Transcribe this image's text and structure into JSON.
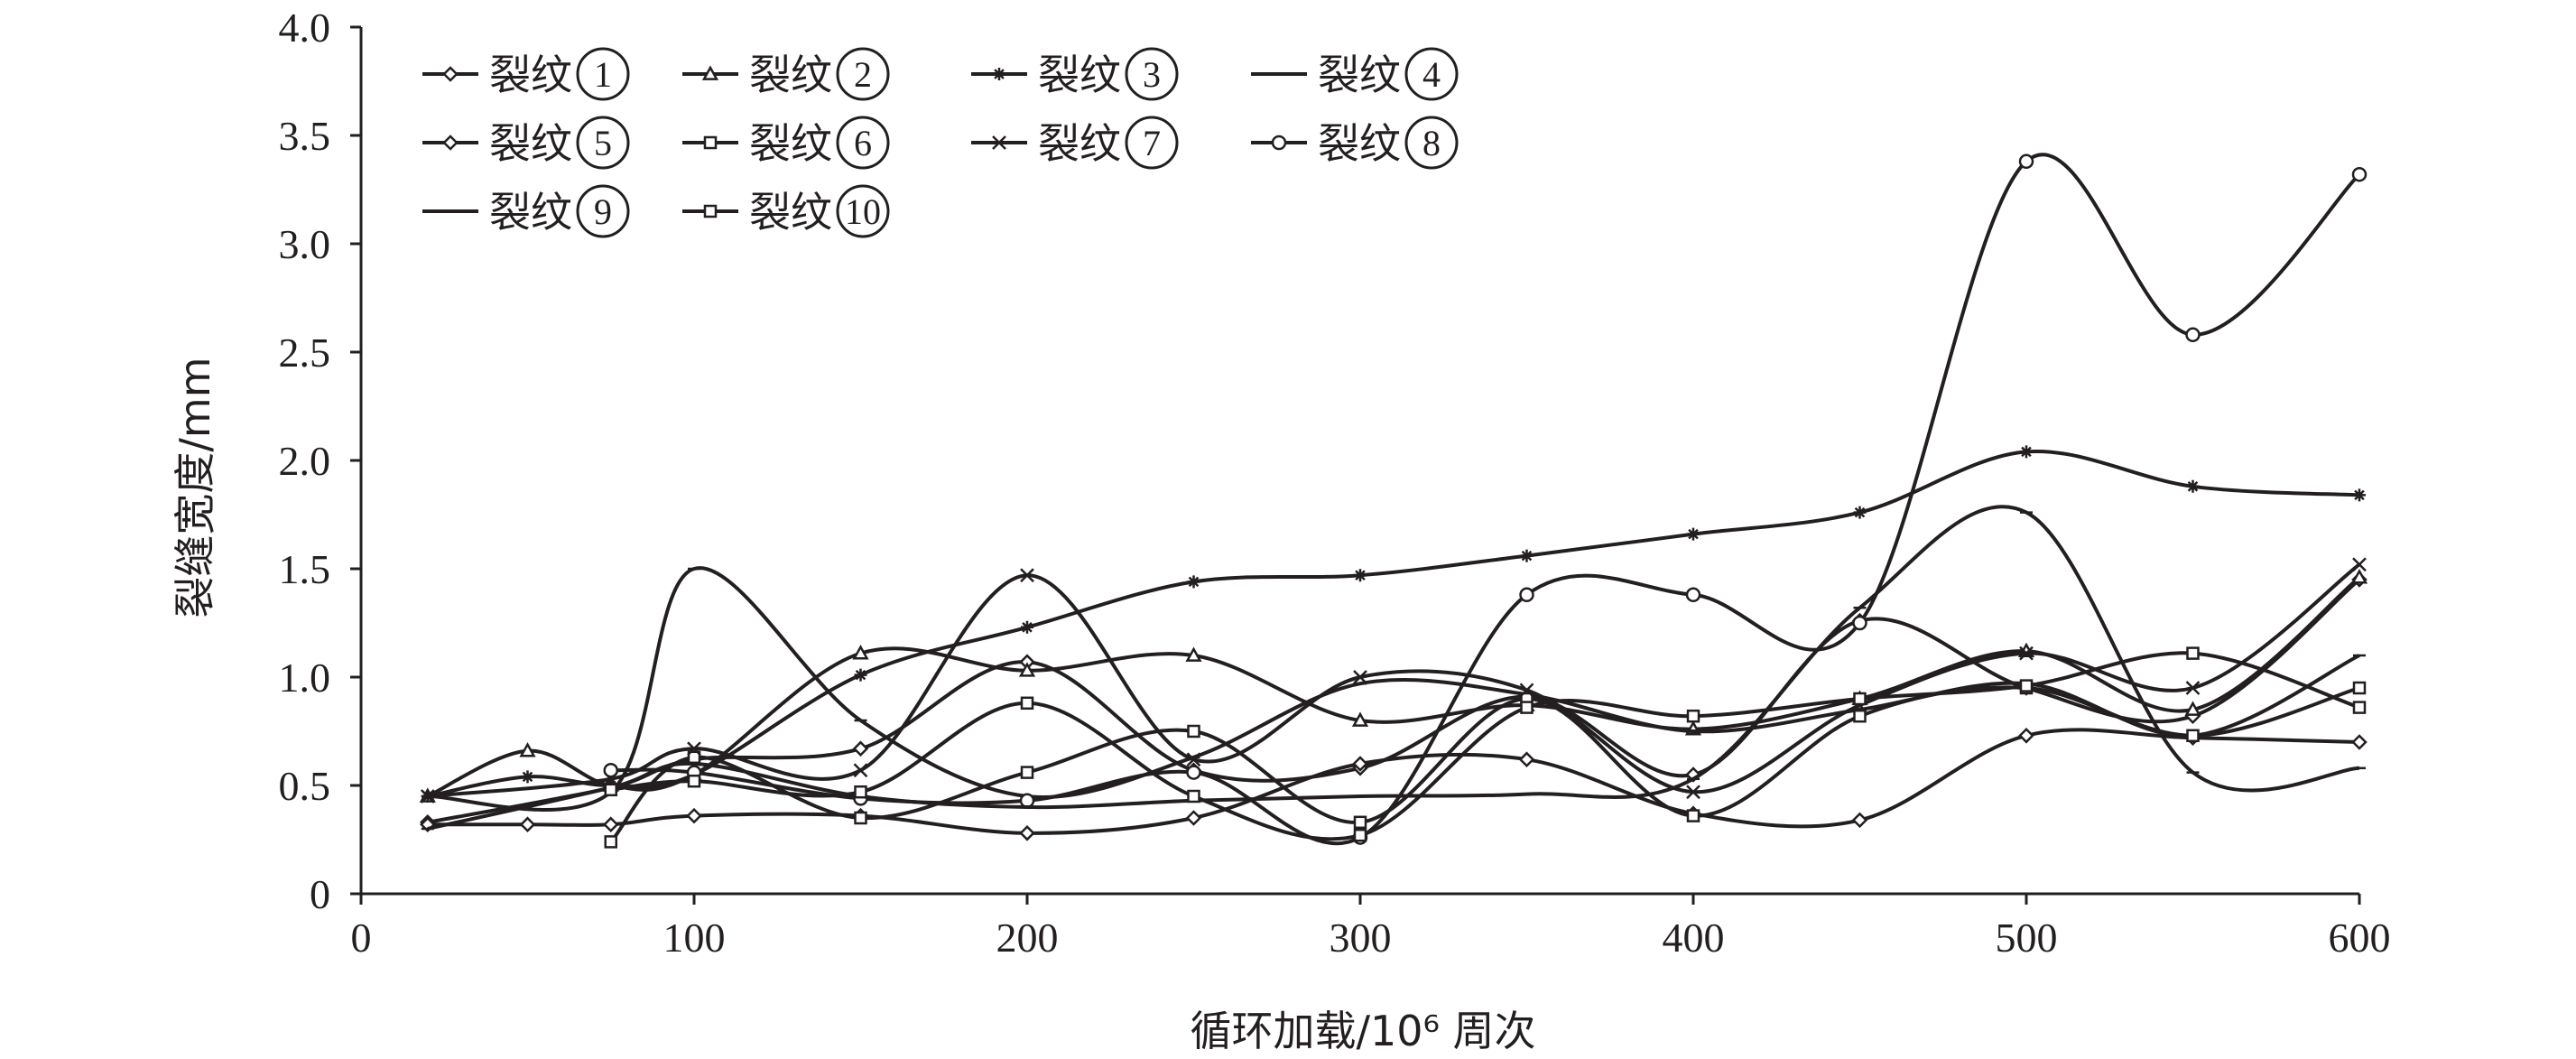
{
  "chart_data": {
    "type": "line",
    "xlabel": "循环加载/10⁶ 周次",
    "ylabel": "裂缝宽度/mm",
    "xlim": [
      0,
      600
    ],
    "ylim": [
      0,
      4.0
    ],
    "x_ticks": [
      "0",
      "100",
      "200",
      "300",
      "400",
      "500",
      "600"
    ],
    "y_ticks": [
      "0",
      "0.5",
      "1.0",
      "1.5",
      "2.0",
      "2.5",
      "3.0",
      "3.5",
      "4.0"
    ],
    "grid": false,
    "legend_position": "top-left",
    "series": [
      {
        "name": "裂纹",
        "number": "1",
        "marker": "diamond",
        "x": [
          20,
          75,
          100,
          150,
          200,
          250,
          300,
          350,
          400,
          450,
          500,
          550,
          600
        ],
        "y": [
          0.33,
          0.49,
          0.62,
          0.67,
          1.07,
          0.57,
          0.58,
          0.91,
          0.55,
          1.26,
          0.95,
          0.82,
          1.45
        ]
      },
      {
        "name": "裂纹",
        "number": "2",
        "marker": "triangle",
        "x": [
          20,
          50,
          75,
          100,
          150,
          200,
          250,
          300,
          350,
          400,
          450,
          500,
          550,
          600
        ],
        "y": [
          0.45,
          0.66,
          0.5,
          0.55,
          1.11,
          1.03,
          1.1,
          0.8,
          0.87,
          0.76,
          0.9,
          1.12,
          0.85,
          1.46
        ]
      },
      {
        "name": "裂纹",
        "number": "3",
        "marker": "star",
        "x": [
          20,
          50,
          75,
          100,
          150,
          200,
          250,
          300,
          350,
          400,
          450,
          500,
          550,
          600
        ],
        "y": [
          0.45,
          0.54,
          0.5,
          0.55,
          1.01,
          1.23,
          1.44,
          1.47,
          1.56,
          1.66,
          1.76,
          2.04,
          1.88,
          1.84
        ]
      },
      {
        "name": "裂纹",
        "number": "4",
        "marker": "dash",
        "x": [
          20,
          75,
          100,
          150,
          200,
          250,
          300,
          350,
          400,
          450,
          500,
          550,
          600
        ],
        "y": [
          0.45,
          0.47,
          1.5,
          0.8,
          0.45,
          0.63,
          0.97,
          0.92,
          0.75,
          0.85,
          0.97,
          0.73,
          1.1
        ]
      },
      {
        "name": "裂纹",
        "number": "5",
        "marker": "diamond",
        "x": [
          20,
          50,
          75,
          100,
          150,
          200,
          250,
          300,
          350,
          400,
          450,
          500,
          550,
          600
        ],
        "y": [
          0.32,
          0.32,
          0.32,
          0.36,
          0.36,
          0.28,
          0.35,
          0.6,
          0.62,
          0.37,
          0.34,
          0.73,
          0.72,
          0.7
        ]
      },
      {
        "name": "裂纹",
        "number": "6",
        "marker": "square",
        "x": [
          75,
          100,
          150,
          200,
          250,
          300,
          350,
          400,
          450,
          500,
          550,
          600
        ],
        "y": [
          0.24,
          0.63,
          0.35,
          0.56,
          0.75,
          0.33,
          0.9,
          0.36,
          0.82,
          0.95,
          0.73,
          0.95
        ]
      },
      {
        "name": "裂纹",
        "number": "7",
        "marker": "x",
        "x": [
          20,
          75,
          100,
          150,
          200,
          250,
          300,
          350,
          400,
          450,
          500,
          550,
          600
        ],
        "y": [
          0.45,
          0.53,
          0.67,
          0.57,
          1.47,
          0.62,
          1.0,
          0.94,
          0.47,
          0.87,
          1.11,
          0.95,
          1.52
        ]
      },
      {
        "name": "裂纹",
        "number": "8",
        "marker": "circle",
        "x": [
          75,
          100,
          150,
          200,
          250,
          300,
          350,
          400,
          450,
          500,
          550,
          600
        ],
        "y": [
          0.57,
          0.56,
          0.44,
          0.43,
          0.56,
          0.26,
          1.38,
          1.38,
          1.25,
          3.38,
          2.58,
          3.32
        ]
      },
      {
        "name": "裂纹",
        "number": "9",
        "marker": "dash",
        "x": [
          20,
          75,
          100,
          150,
          200,
          250,
          300,
          350,
          400,
          450,
          500,
          550,
          600
        ],
        "y": [
          0.3,
          0.49,
          0.6,
          0.45,
          0.4,
          0.43,
          0.45,
          0.46,
          0.53,
          1.32,
          1.76,
          0.56,
          0.58
        ]
      },
      {
        "name": "裂纹",
        "number": "10",
        "marker": "square",
        "x": [
          75,
          100,
          150,
          200,
          250,
          300,
          350,
          400,
          450,
          500,
          550,
          600
        ],
        "y": [
          0.48,
          0.52,
          0.47,
          0.88,
          0.45,
          0.27,
          0.86,
          0.82,
          0.9,
          0.96,
          1.11,
          0.86
        ]
      }
    ]
  }
}
